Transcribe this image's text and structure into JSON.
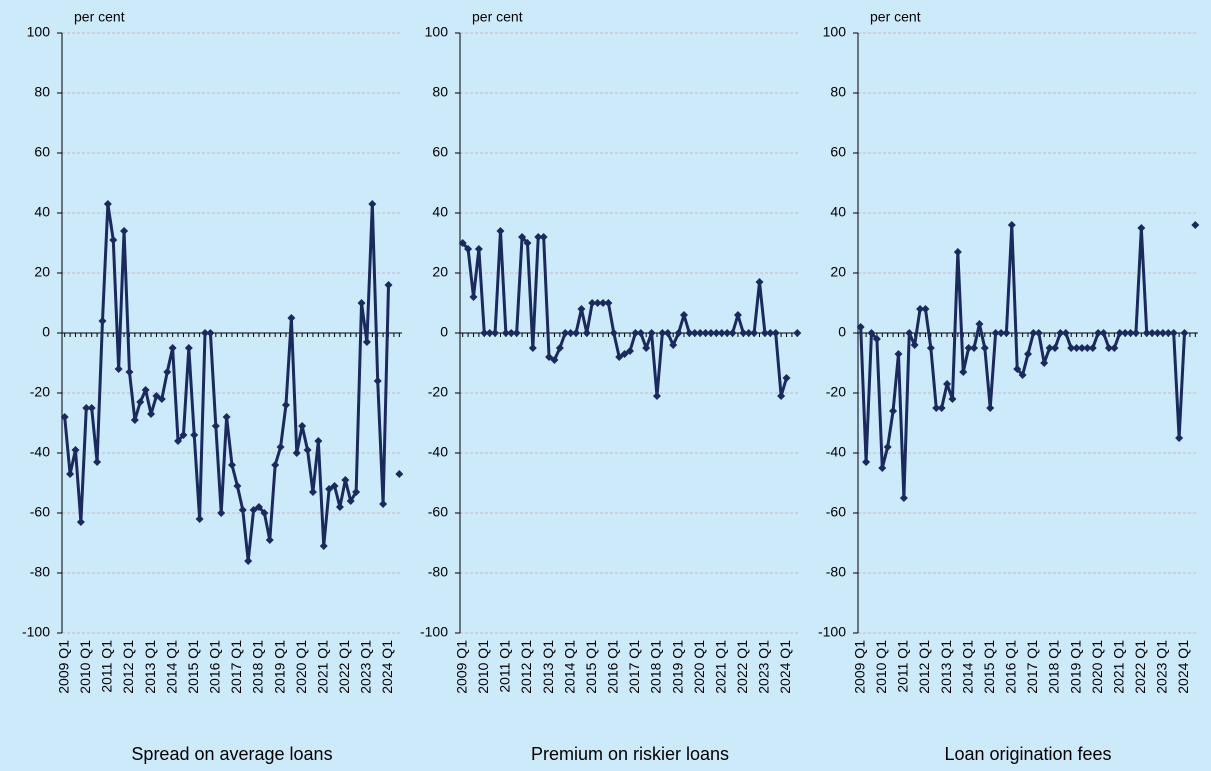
{
  "chart_data": [
    {
      "type": "line",
      "title": "Spread on average loans",
      "y_label": "per cent",
      "categories": [
        "2009 Q1",
        null,
        null,
        null,
        "2010 Q1",
        null,
        null,
        null,
        "2011 Q1",
        null,
        null,
        null,
        "2012 Q1",
        null,
        null,
        null,
        "2013 Q1",
        null,
        null,
        null,
        "2014 Q1",
        null,
        null,
        null,
        "2015 Q1",
        null,
        null,
        null,
        "2016 Q1",
        null,
        null,
        null,
        "2017 Q1",
        null,
        null,
        null,
        "2018 Q1",
        null,
        null,
        null,
        "2019 Q1",
        null,
        null,
        null,
        "2020 Q1",
        null,
        null,
        null,
        "2021 Q1",
        null,
        null,
        null,
        "2022 Q1",
        null,
        null,
        null,
        "2023 Q1",
        null,
        null,
        null,
        "2024 Q1",
        null,
        null
      ],
      "series": [
        {
          "name": "Spread on average loans",
          "color": "#1b2a5c",
          "values": [
            -28,
            -47,
            -39,
            -63,
            -25,
            -25,
            -43,
            4,
            43,
            31,
            -12,
            34,
            -13,
            -29,
            -23,
            -19,
            -27,
            -21,
            -22,
            -13,
            -5,
            -36,
            -34,
            -5,
            -34,
            -62,
            0,
            0,
            -31,
            -60,
            -28,
            -44,
            -51,
            -59,
            -76,
            -59,
            -58,
            -60,
            -69,
            -44,
            -38,
            -24,
            5,
            -40,
            -31,
            -39,
            -53,
            -36,
            -71,
            -52,
            -51,
            -58,
            -49,
            -56,
            -53,
            10,
            -3,
            43,
            -16,
            -57,
            16,
            null,
            -47
          ]
        }
      ],
      "ylim": [
        -100,
        100
      ],
      "yticks": [
        -100,
        -80,
        -60,
        -40,
        -20,
        0,
        20,
        40,
        60,
        80,
        100
      ],
      "grid": true
    },
    {
      "type": "line",
      "title": "Premium on riskier loans",
      "y_label": "per cent",
      "categories": [
        "2009 Q1",
        null,
        null,
        null,
        "2010 Q1",
        null,
        null,
        null,
        "2011 Q1",
        null,
        null,
        null,
        "2012 Q1",
        null,
        null,
        null,
        "2013 Q1",
        null,
        null,
        null,
        "2014 Q1",
        null,
        null,
        null,
        "2015 Q1",
        null,
        null,
        null,
        "2016 Q1",
        null,
        null,
        null,
        "2017 Q1",
        null,
        null,
        null,
        "2018 Q1",
        null,
        null,
        null,
        "2019 Q1",
        null,
        null,
        null,
        "2020 Q1",
        null,
        null,
        null,
        "2021 Q1",
        null,
        null,
        null,
        "2022 Q1",
        null,
        null,
        null,
        "2023 Q1",
        null,
        null,
        null,
        "2024 Q1",
        null,
        null
      ],
      "series": [
        {
          "name": "Premium on riskier loans",
          "color": "#1b2a5c",
          "values": [
            30,
            28,
            12,
            28,
            0,
            0,
            0,
            34,
            0,
            0,
            0,
            32,
            30,
            -5,
            32,
            32,
            -8,
            -9,
            -5,
            0,
            0,
            0,
            8,
            0,
            10,
            10,
            10,
            10,
            0,
            -8,
            -7,
            -6,
            0,
            0,
            -5,
            0,
            -21,
            0,
            0,
            -4,
            0,
            6,
            0,
            0,
            0,
            0,
            0,
            0,
            0,
            0,
            0,
            6,
            0,
            0,
            0,
            17,
            0,
            0,
            0,
            -21,
            -15,
            null,
            0
          ]
        }
      ],
      "ylim": [
        -100,
        100
      ],
      "yticks": [
        -100,
        -80,
        -60,
        -40,
        -20,
        0,
        20,
        40,
        60,
        80,
        100
      ],
      "grid": true
    },
    {
      "type": "line",
      "title": "Loan origination fees",
      "y_label": "per cent",
      "categories": [
        "2009 Q1",
        null,
        null,
        null,
        "2010 Q1",
        null,
        null,
        null,
        "2011 Q1",
        null,
        null,
        null,
        "2012 Q1",
        null,
        null,
        null,
        "2013 Q1",
        null,
        null,
        null,
        "2014 Q1",
        null,
        null,
        null,
        "2015 Q1",
        null,
        null,
        null,
        "2016 Q1",
        null,
        null,
        null,
        "2017 Q1",
        null,
        null,
        null,
        "2018 Q1",
        null,
        null,
        null,
        "2019 Q1",
        null,
        null,
        null,
        "2020 Q1",
        null,
        null,
        null,
        "2021 Q1",
        null,
        null,
        null,
        "2022 Q1",
        null,
        null,
        null,
        "2023 Q1",
        null,
        null,
        null,
        "2024 Q1",
        null,
        null
      ],
      "series": [
        {
          "name": "Loan origination fees",
          "color": "#1b2a5c",
          "values": [
            2,
            -43,
            0,
            -2,
            -45,
            -38,
            -26,
            -7,
            -55,
            0,
            -4,
            8,
            8,
            -5,
            -25,
            -25,
            -17,
            -22,
            27,
            -13,
            -5,
            -5,
            3,
            -5,
            -25,
            0,
            0,
            0,
            36,
            -12,
            -14,
            -7,
            0,
            0,
            -10,
            -5,
            -5,
            0,
            0,
            -5,
            -5,
            -5,
            -5,
            -5,
            0,
            0,
            -5,
            -5,
            0,
            0,
            0,
            0,
            35,
            0,
            0,
            0,
            0,
            0,
            0,
            -35,
            0,
            null,
            36
          ]
        }
      ],
      "ylim": [
        -100,
        100
      ],
      "yticks": [
        -100,
        -80,
        -60,
        -40,
        -20,
        0,
        20,
        40,
        60,
        80,
        100
      ],
      "grid": true
    }
  ]
}
